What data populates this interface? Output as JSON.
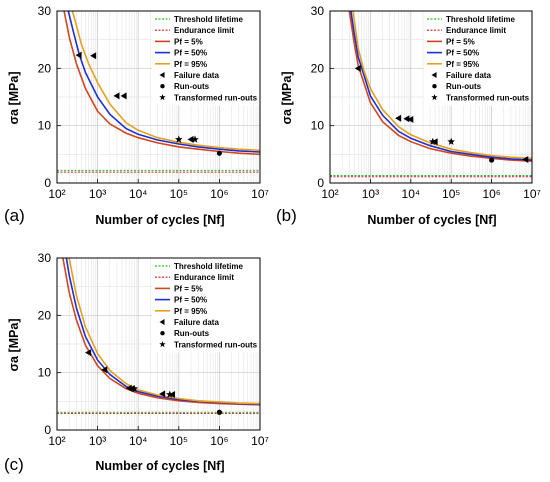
{
  "chart_data": [
    {
      "panel_label": "(a)",
      "type": "line",
      "xlabel": "Number of cycles [Nf]",
      "ylabel": "σa [MPa]",
      "xscale": "log",
      "xlim": [
        100,
        10000000
      ],
      "ylim": [
        0,
        30
      ],
      "grid": true,
      "legend_position": "top-right",
      "x_ticks": [
        "10²",
        "10³",
        "10⁴",
        "10⁵",
        "10⁶",
        "10⁷"
      ],
      "y_ticks": [
        "0",
        "10",
        "20",
        "30"
      ],
      "legend": [
        "Threshold lifetime",
        "Endurance limit",
        "Pf = 5%",
        "Pf = 50%",
        "Pf = 95%",
        "Failure data",
        "Run-outs",
        "Transformed run-outs"
      ],
      "threshold_lifetime": 2.2,
      "endurance_limit": 1.9,
      "series": [
        {
          "name": "Pf = 5%",
          "color": "#d2461e",
          "x": [
            150,
            200,
            300,
            500,
            1000,
            2000,
            5000,
            10000,
            30000,
            100000,
            300000,
            1000000,
            3000000,
            10000000
          ],
          "y": [
            30,
            25.5,
            20.8,
            16.5,
            12.5,
            10.3,
            8.7,
            7.9,
            7.0,
            6.3,
            5.9,
            5.5,
            5.2,
            5.0
          ]
        },
        {
          "name": "Pf = 50%",
          "color": "#1f2fd0",
          "x": [
            190,
            250,
            350,
            500,
            1000,
            2000,
            5000,
            10000,
            30000,
            100000,
            300000,
            1000000,
            3000000,
            10000000
          ],
          "y": [
            30,
            26.5,
            22.5,
            19.3,
            15.0,
            12.0,
            9.5,
            8.5,
            7.5,
            6.8,
            6.3,
            5.9,
            5.6,
            5.4
          ]
        },
        {
          "name": "Pf = 95%",
          "color": "#e5a020",
          "x": [
            240,
            300,
            400,
            600,
            1000,
            2000,
            5000,
            10000,
            30000,
            100000,
            300000,
            1000000,
            3000000,
            10000000
          ],
          "y": [
            30,
            27.5,
            24.2,
            20.8,
            17.5,
            13.8,
            10.5,
            9.2,
            7.9,
            7.1,
            6.6,
            6.2,
            5.9,
            5.7
          ]
        }
      ],
      "failure_data": {
        "x": [
          350,
          800,
          3000,
          4500,
          200000
        ],
        "y": [
          22.3,
          22.2,
          15.2,
          15.2,
          7.6
        ]
      },
      "run_outs": {
        "x": [
          1000000
        ],
        "y": [
          5.2
        ]
      },
      "transformed_run_outs": {
        "x": [
          250000,
          100000
        ],
        "y": [
          7.6,
          7.6
        ]
      }
    },
    {
      "panel_label": "(b)",
      "type": "line",
      "xlabel": "Number of cycles [Nf]",
      "ylabel": "σa [MPa]",
      "xscale": "log",
      "xlim": [
        100,
        10000000
      ],
      "ylim": [
        0,
        30
      ],
      "grid": true,
      "legend_position": "top-right",
      "x_ticks": [
        "10²",
        "10³",
        "10⁴",
        "10⁵",
        "10⁶",
        "10⁷"
      ],
      "y_ticks": [
        "0",
        "10",
        "20",
        "30"
      ],
      "legend": [
        "Threshold lifetime",
        "Endurance limit",
        "Pf = 5%",
        "Pf = 50%",
        "Pf = 95%",
        "Failure data",
        "Run-outs",
        "Transformed run-outs"
      ],
      "threshold_lifetime": 1.3,
      "endurance_limit": 1.1,
      "series": [
        {
          "name": "Pf = 5%",
          "color": "#d2461e",
          "x": [
            300,
            400,
            500,
            1000,
            2000,
            5000,
            10000,
            30000,
            100000,
            300000,
            1000000,
            3000000,
            10000000
          ],
          "y": [
            30,
            24.3,
            20.5,
            14.0,
            10.7,
            8.3,
            7.2,
            6.0,
            5.2,
            4.7,
            4.3,
            4.0,
            3.8
          ]
        },
        {
          "name": "Pf = 50%",
          "color": "#1f2fd0",
          "x": [
            330,
            400,
            500,
            1000,
            2000,
            5000,
            10000,
            30000,
            100000,
            300000,
            1000000,
            3000000,
            10000000
          ],
          "y": [
            30,
            26.0,
            22.0,
            15.2,
            11.8,
            9.0,
            7.8,
            6.5,
            5.5,
            5.0,
            4.5,
            4.2,
            4.0
          ]
        },
        {
          "name": "Pf = 95%",
          "color": "#e5a020",
          "x": [
            370,
            500,
            700,
            1000,
            2000,
            5000,
            10000,
            30000,
            100000,
            300000,
            1000000,
            3000000,
            10000000
          ],
          "y": [
            30,
            23.5,
            19.5,
            16.5,
            12.8,
            9.8,
            8.4,
            7.0,
            5.9,
            5.3,
            4.8,
            4.5,
            4.3
          ]
        }
      ],
      "failure_data": {
        "x": [
          500,
          5000,
          8000,
          10000,
          40000,
          7000000
        ],
        "y": [
          20.0,
          11.3,
          11.2,
          11.1,
          7.2,
          4.1
        ]
      },
      "run_outs": {
        "x": [
          1000000
        ],
        "y": [
          4.0
        ]
      },
      "transformed_run_outs": {
        "x": [
          35000,
          100000
        ],
        "y": [
          7.2,
          7.2
        ]
      }
    },
    {
      "panel_label": "(c)",
      "type": "line",
      "xlabel": "Number of cycles [Nf]",
      "ylabel": "σa [MPa]",
      "xscale": "log",
      "xlim": [
        100,
        10000000
      ],
      "ylim": [
        0,
        30
      ],
      "grid": true,
      "legend_position": "top-right",
      "x_ticks": [
        "10²",
        "10³",
        "10⁴",
        "10⁵",
        "10⁶",
        "10⁷"
      ],
      "y_ticks": [
        "0",
        "10",
        "20",
        "30"
      ],
      "legend": [
        "Threshold lifetime",
        "Endurance limit",
        "Pf = 5%",
        "Pf = 50%",
        "Pf = 95%",
        "Failure data",
        "Run-outs",
        "Transformed run-outs"
      ],
      "threshold_lifetime": 3.1,
      "endurance_limit": 2.9,
      "series": [
        {
          "name": "Pf = 5%",
          "color": "#d2461e",
          "x": [
            140,
            200,
            300,
            500,
            1000,
            2000,
            5000,
            10000,
            30000,
            100000,
            300000,
            1000000,
            3000000,
            10000000
          ],
          "y": [
            30,
            24.0,
            19.2,
            14.8,
            11.2,
            9.0,
            7.2,
            6.4,
            5.6,
            5.1,
            4.8,
            4.6,
            4.5,
            4.4
          ]
        },
        {
          "name": "Pf = 50%",
          "color": "#1f2fd0",
          "x": [
            170,
            200,
            300,
            500,
            1000,
            2000,
            5000,
            10000,
            30000,
            100000,
            300000,
            1000000,
            3000000,
            10000000
          ],
          "y": [
            30,
            27.0,
            21.3,
            16.3,
            12.2,
            9.7,
            7.6,
            6.7,
            5.9,
            5.3,
            5.0,
            4.8,
            4.6,
            4.5
          ]
        },
        {
          "name": "Pf = 95%",
          "color": "#e5a020",
          "x": [
            200,
            250,
            300,
            500,
            1000,
            2000,
            5000,
            10000,
            30000,
            100000,
            300000,
            1000000,
            3000000,
            10000000
          ],
          "y": [
            30,
            26.3,
            23.5,
            18.0,
            13.3,
            10.4,
            8.1,
            7.0,
            6.1,
            5.5,
            5.1,
            4.9,
            4.7,
            4.6
          ]
        }
      ],
      "failure_data": {
        "x": [
          600,
          1500,
          6000,
          7000,
          40000,
          70000
        ],
        "y": [
          13.5,
          10.5,
          7.3,
          7.2,
          6.3,
          6.2
        ]
      },
      "run_outs": {
        "x": [
          1000000
        ],
        "y": [
          3.1
        ]
      },
      "transformed_run_outs": {
        "x": [
          8000,
          60000
        ],
        "y": [
          7.2,
          6.2
        ]
      }
    }
  ]
}
